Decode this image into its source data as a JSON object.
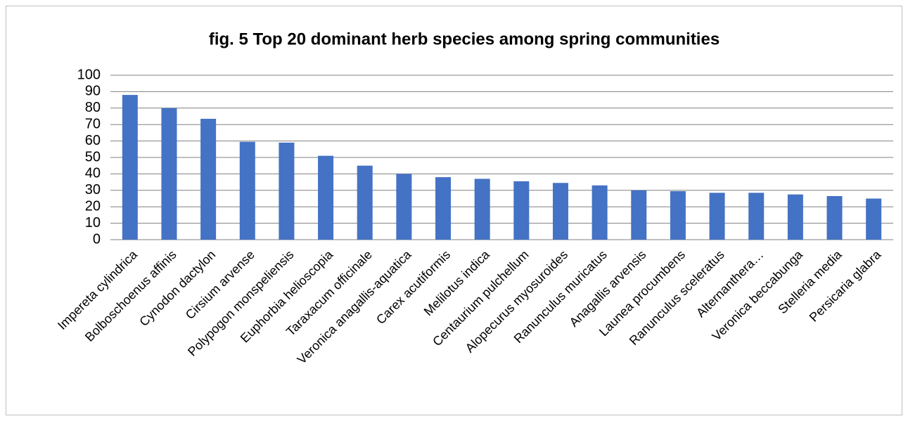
{
  "chart_data": {
    "type": "bar",
    "title": "fig. 5 Top 20 dominant herb species among spring communities",
    "categories": [
      "Impereta cylindrica",
      "Bolboschoenus affinis",
      "Cynodon dactylon",
      "Cirsium arvense",
      "Polypogon monspeliensis",
      "Euphorbia helioscopia",
      "Taraxacum officinale",
      "Veronica anagallis-aquatica",
      "Carex acutiformis",
      "Melilotus indica",
      "Centaurium pulchellum",
      "Alopecurus myosuroides",
      "Ranunculus muricatus",
      "Anagallis arvensis",
      "Launea procumbens",
      "Ranunculus sceleratus",
      "Alternanthera…",
      "Veronica beccabunga",
      "Stelleria media",
      "Persicaria glabra"
    ],
    "values": [
      88,
      80,
      73.5,
      59.5,
      59,
      51,
      45,
      40,
      38,
      37,
      35.5,
      34.5,
      33,
      30,
      29.5,
      28.5,
      28.5,
      27.5,
      26.5,
      25
    ],
    "color": "#4472c4",
    "ylim": [
      0,
      100
    ],
    "yticks": [
      0,
      10,
      20,
      30,
      40,
      50,
      60,
      70,
      80,
      90,
      100
    ],
    "grid": true
  }
}
